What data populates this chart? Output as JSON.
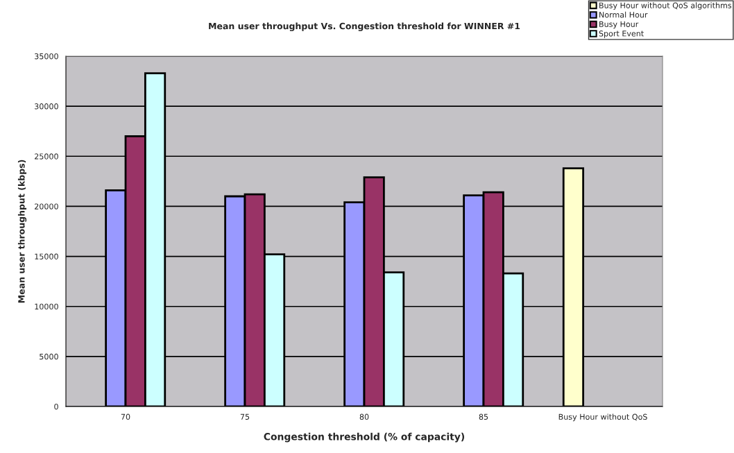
{
  "chart_data": {
    "type": "bar",
    "title": "Mean user throughput Vs. Congestion threshold for WINNER #1",
    "xlabel": "Congestion threshold (% of capacity)",
    "ylabel": "Mean user throughput (kbps)",
    "categories": [
      "70",
      "75",
      "80",
      "85",
      "Busy Hour without QoS"
    ],
    "series": [
      {
        "name": "Busy Hour without QoS algorithms",
        "color": "#ffffcc",
        "values": [
          null,
          null,
          null,
          null,
          23800
        ]
      },
      {
        "name": "Normal Hour",
        "color": "#9999ff",
        "values": [
          21600,
          21000,
          20400,
          21100,
          null
        ]
      },
      {
        "name": "Busy Hour",
        "color": "#993366",
        "values": [
          27000,
          21200,
          22900,
          21400,
          null
        ]
      },
      {
        "name": "Sport Event",
        "color": "#ccffff",
        "values": [
          33300,
          15200,
          13400,
          13300,
          null
        ]
      }
    ],
    "ylim": [
      0,
      35000
    ],
    "yticks": [
      0,
      5000,
      10000,
      15000,
      20000,
      25000,
      30000,
      35000
    ],
    "grid": "y",
    "legend": "top right"
  }
}
